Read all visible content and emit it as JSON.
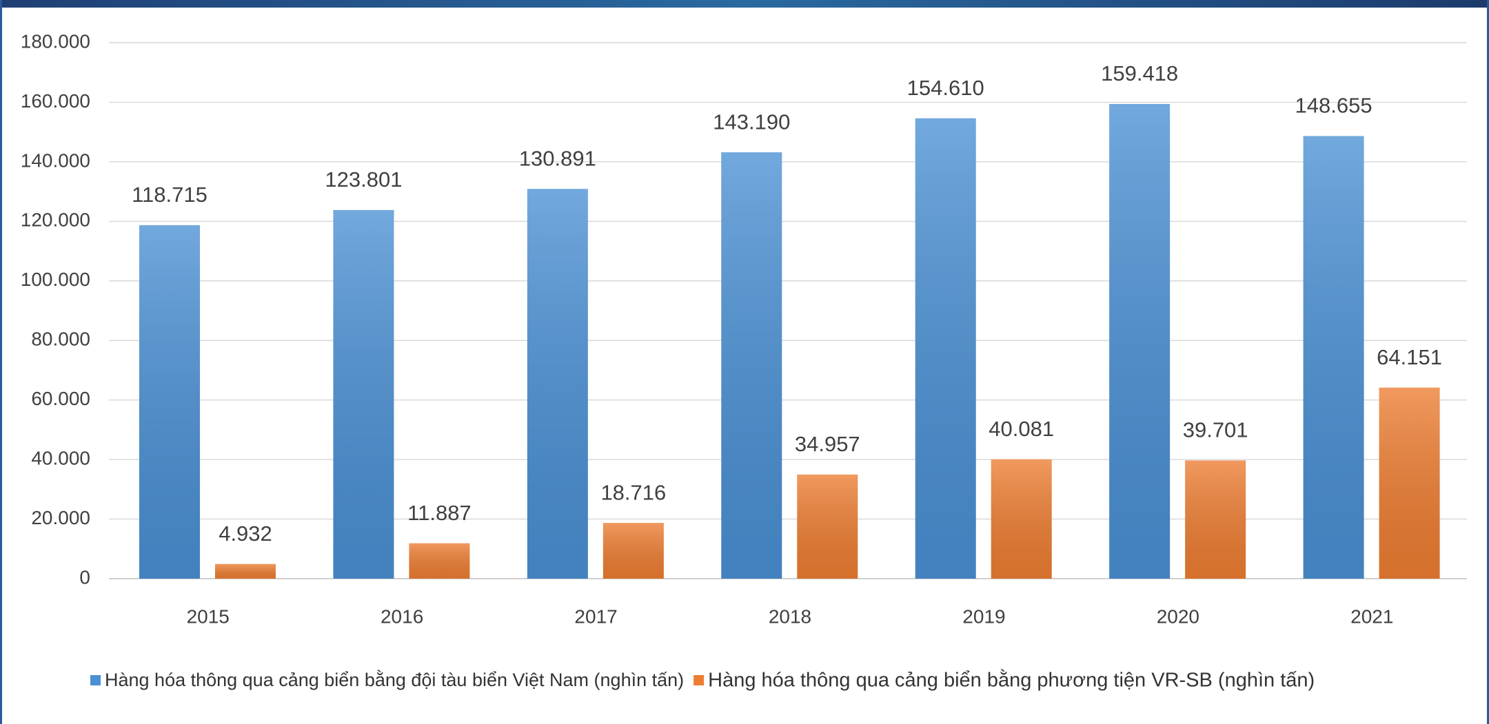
{
  "chart_data": {
    "type": "bar",
    "categories": [
      "2015",
      "2016",
      "2017",
      "2018",
      "2019",
      "2020",
      "2021"
    ],
    "series": [
      {
        "name": "Hàng hóa thông qua cảng biển bằng đội tàu biển Việt Nam (nghìn tấn)",
        "color": "#4a90d4",
        "values": [
          118715,
          123801,
          130891,
          143190,
          154610,
          159418,
          148655
        ],
        "value_labels": [
          "118.715",
          "123.801",
          "130.891",
          "143.190",
          "154.610",
          "159.418",
          "148.655"
        ]
      },
      {
        "name": "Hàng hóa thông qua cảng biển bằng phương tiện VR-SB (nghìn tấn)",
        "color": "#ed7d31",
        "values": [
          4932,
          11887,
          18716,
          34957,
          40081,
          39701,
          64151
        ],
        "value_labels": [
          "4.932",
          "11.887",
          "18.716",
          "34.957",
          "40.081",
          "39.701",
          "64.151"
        ]
      }
    ],
    "ylim": [
      0,
      180000
    ],
    "yticks": [
      0,
      {
        "value": 20000,
        "label": "20.000"
      },
      {
        "value": 40000,
        "label": "40.000"
      },
      {
        "value": 60000,
        "label": "60.000"
      },
      {
        "value": 80000,
        "label": "80.000"
      },
      {
        "value": 100000,
        "label": "100.000"
      },
      {
        "value": 120000,
        "label": "120.000"
      },
      {
        "value": 140000,
        "label": "140.000"
      },
      {
        "value": 160000,
        "label": "160.000"
      },
      {
        "value": 180000,
        "label": "180.000"
      }
    ],
    "grid": true,
    "legend": "bottom"
  }
}
